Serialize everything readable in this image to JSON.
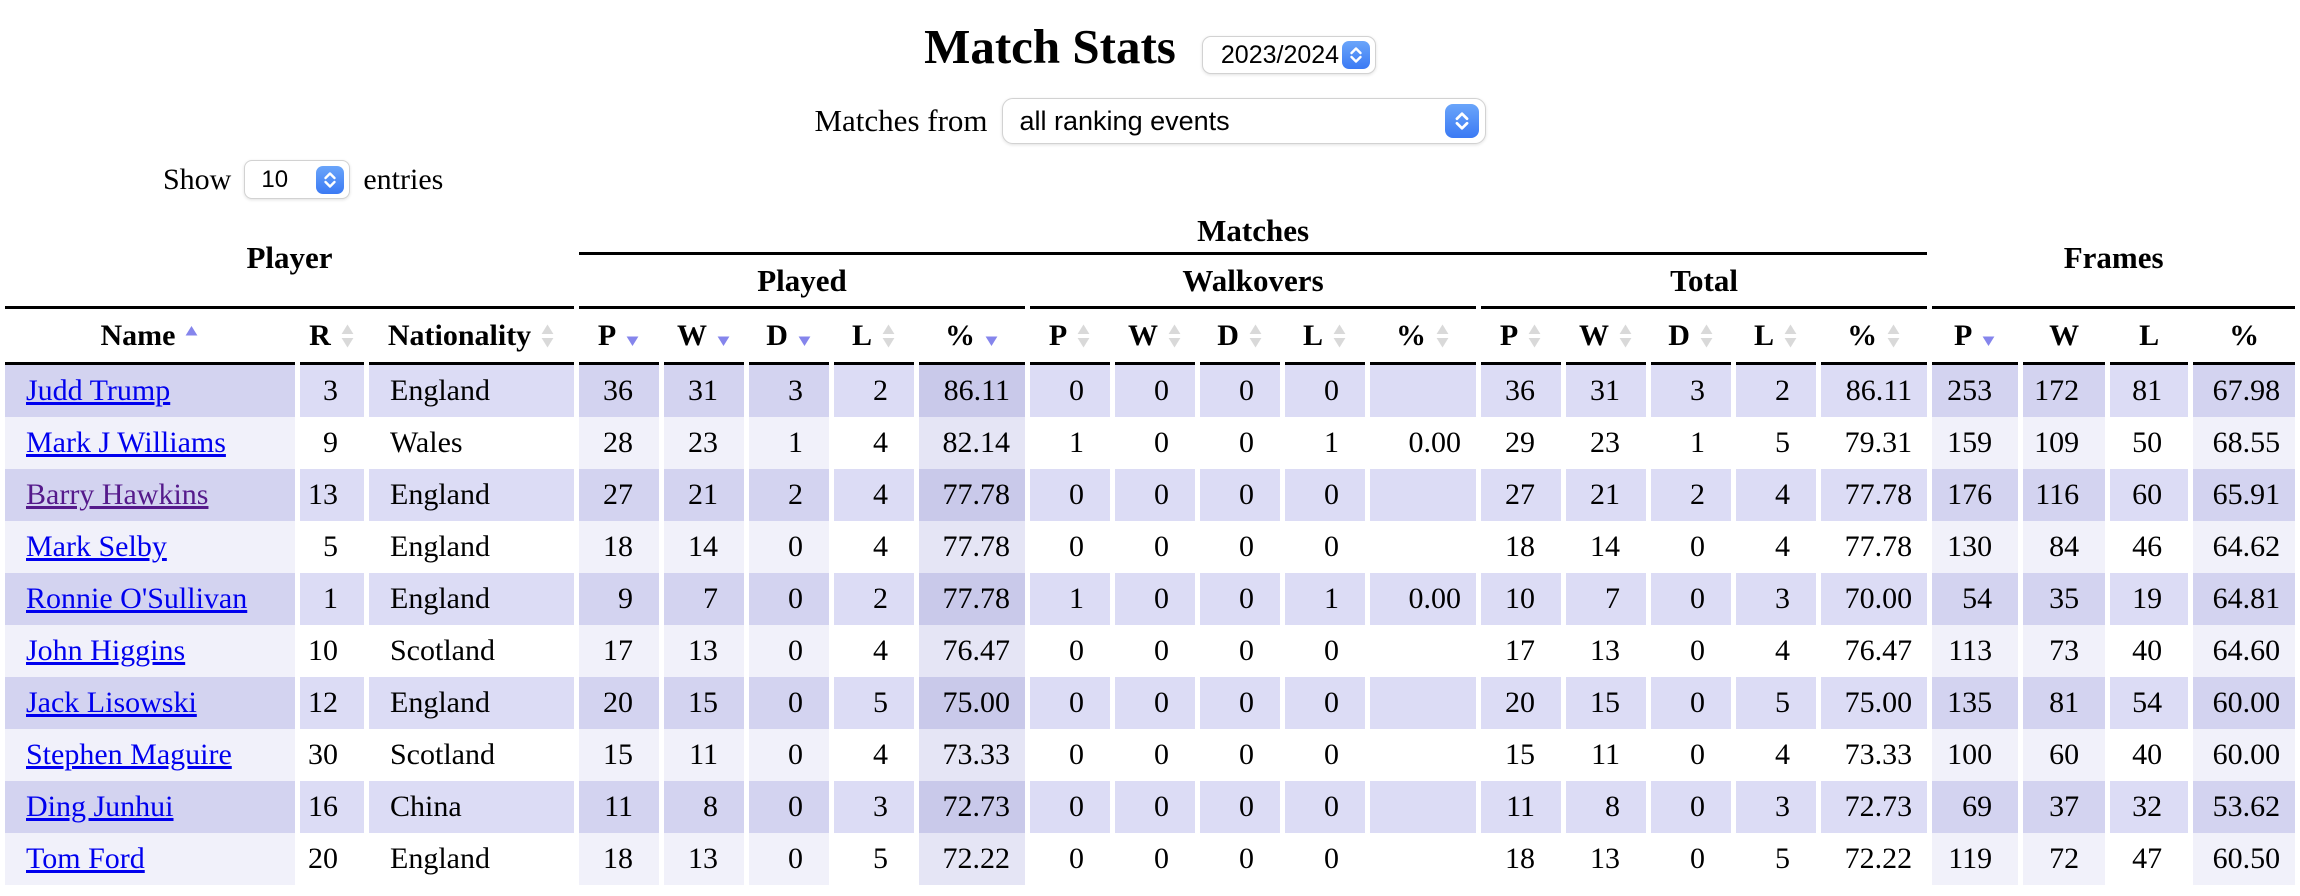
{
  "title": "Match Stats",
  "controls": {
    "season_select_value": "2023/2024",
    "matches_from_label": "Matches from",
    "event_select_value": "all ranking events",
    "show_label": "Show",
    "show_select_value": "10",
    "entries_label": "entries"
  },
  "table": {
    "group_headers": {
      "player": "Player",
      "matches": "Matches",
      "frames": "Frames",
      "played": "Played",
      "walkovers": "Walkovers",
      "total": "Total"
    },
    "columns": [
      {
        "key": "name",
        "label": "Name",
        "sort": "asc",
        "hl": 1
      },
      {
        "key": "r",
        "label": "R",
        "sort": "both",
        "hl": 0
      },
      {
        "key": "nationality",
        "label": "Nationality",
        "sort": "both",
        "hl": 0
      },
      {
        "key": "pp",
        "label": "P",
        "sort": "desc",
        "hl": 1
      },
      {
        "key": "pw",
        "label": "W",
        "sort": "desc",
        "hl": 1
      },
      {
        "key": "pd",
        "label": "D",
        "sort": "desc",
        "hl": 1
      },
      {
        "key": "pl",
        "label": "L",
        "sort": "both",
        "hl": 0
      },
      {
        "key": "ppct",
        "label": "%",
        "sort": "desc",
        "hl": 2
      },
      {
        "key": "wp",
        "label": "P",
        "sort": "both",
        "hl": 0
      },
      {
        "key": "ww",
        "label": "W",
        "sort": "both",
        "hl": 0
      },
      {
        "key": "wd",
        "label": "D",
        "sort": "both",
        "hl": 0
      },
      {
        "key": "wl",
        "label": "L",
        "sort": "both",
        "hl": 0
      },
      {
        "key": "wpct",
        "label": "%",
        "sort": "both",
        "hl": 0
      },
      {
        "key": "tp",
        "label": "P",
        "sort": "both",
        "hl": 0
      },
      {
        "key": "tw",
        "label": "W",
        "sort": "both",
        "hl": 0
      },
      {
        "key": "td",
        "label": "D",
        "sort": "both",
        "hl": 0
      },
      {
        "key": "tl",
        "label": "L",
        "sort": "both",
        "hl": 0
      },
      {
        "key": "tpct",
        "label": "%",
        "sort": "both",
        "hl": 0
      },
      {
        "key": "fp",
        "label": "P",
        "sort": "desc",
        "hl": 1
      },
      {
        "key": "fw",
        "label": "W",
        "sort": "none",
        "hl": 1
      },
      {
        "key": "fl",
        "label": "L",
        "sort": "none",
        "hl": 0
      },
      {
        "key": "fpct",
        "label": "%",
        "sort": "none",
        "hl": 1
      }
    ],
    "rows": [
      {
        "visited": false,
        "values": [
          "Judd Trump",
          "3",
          "England",
          "36",
          "31",
          "3",
          "2",
          "86.11",
          "0",
          "0",
          "0",
          "0",
          "",
          "36",
          "31",
          "3",
          "2",
          "86.11",
          "253",
          "172",
          "81",
          "67.98"
        ]
      },
      {
        "visited": false,
        "values": [
          "Mark J Williams",
          "9",
          "Wales",
          "28",
          "23",
          "1",
          "4",
          "82.14",
          "1",
          "0",
          "0",
          "1",
          "0.00",
          "29",
          "23",
          "1",
          "5",
          "79.31",
          "159",
          "109",
          "50",
          "68.55"
        ]
      },
      {
        "visited": true,
        "values": [
          "Barry Hawkins",
          "13",
          "England",
          "27",
          "21",
          "2",
          "4",
          "77.78",
          "0",
          "0",
          "0",
          "0",
          "",
          "27",
          "21",
          "2",
          "4",
          "77.78",
          "176",
          "116",
          "60",
          "65.91"
        ]
      },
      {
        "visited": false,
        "values": [
          "Mark Selby",
          "5",
          "England",
          "18",
          "14",
          "0",
          "4",
          "77.78",
          "0",
          "0",
          "0",
          "0",
          "",
          "18",
          "14",
          "0",
          "4",
          "77.78",
          "130",
          "84",
          "46",
          "64.62"
        ]
      },
      {
        "visited": false,
        "values": [
          "Ronnie O'Sullivan",
          "1",
          "England",
          "9",
          "7",
          "0",
          "2",
          "77.78",
          "1",
          "0",
          "0",
          "1",
          "0.00",
          "10",
          "7",
          "0",
          "3",
          "70.00",
          "54",
          "35",
          "19",
          "64.81"
        ]
      },
      {
        "visited": false,
        "values": [
          "John Higgins",
          "10",
          "Scotland",
          "17",
          "13",
          "0",
          "4",
          "76.47",
          "0",
          "0",
          "0",
          "0",
          "",
          "17",
          "13",
          "0",
          "4",
          "76.47",
          "113",
          "73",
          "40",
          "64.60"
        ]
      },
      {
        "visited": false,
        "values": [
          "Jack Lisowski",
          "12",
          "England",
          "20",
          "15",
          "0",
          "5",
          "75.00",
          "0",
          "0",
          "0",
          "0",
          "",
          "20",
          "15",
          "0",
          "5",
          "75.00",
          "135",
          "81",
          "54",
          "60.00"
        ]
      },
      {
        "visited": false,
        "values": [
          "Stephen Maguire",
          "30",
          "Scotland",
          "15",
          "11",
          "0",
          "4",
          "73.33",
          "0",
          "0",
          "0",
          "0",
          "",
          "15",
          "11",
          "0",
          "4",
          "73.33",
          "100",
          "60",
          "40",
          "60.00"
        ]
      },
      {
        "visited": false,
        "values": [
          "Ding Junhui",
          "16",
          "China",
          "11",
          "8",
          "0",
          "3",
          "72.73",
          "0",
          "0",
          "0",
          "0",
          "",
          "11",
          "8",
          "0",
          "3",
          "72.73",
          "69",
          "37",
          "32",
          "53.62"
        ]
      },
      {
        "visited": false,
        "values": [
          "Tom Ford",
          "20",
          "England",
          "18",
          "13",
          "0",
          "5",
          "72.22",
          "0",
          "0",
          "0",
          "0",
          "",
          "18",
          "13",
          "0",
          "5",
          "72.22",
          "119",
          "72",
          "47",
          "60.50"
        ]
      }
    ]
  },
  "colors": {
    "row_stripe": "#dcdcf5",
    "sorted_column_primary": "#c9c9ea",
    "sorted_column_secondary": "#d3d3f0",
    "link": "#0000ee",
    "link_visited": "#551a8b",
    "sort_arrow_active": "#8585ec",
    "sort_arrow_inactive": "#d9d9d9",
    "select_button_blue": "#3b7af4"
  }
}
